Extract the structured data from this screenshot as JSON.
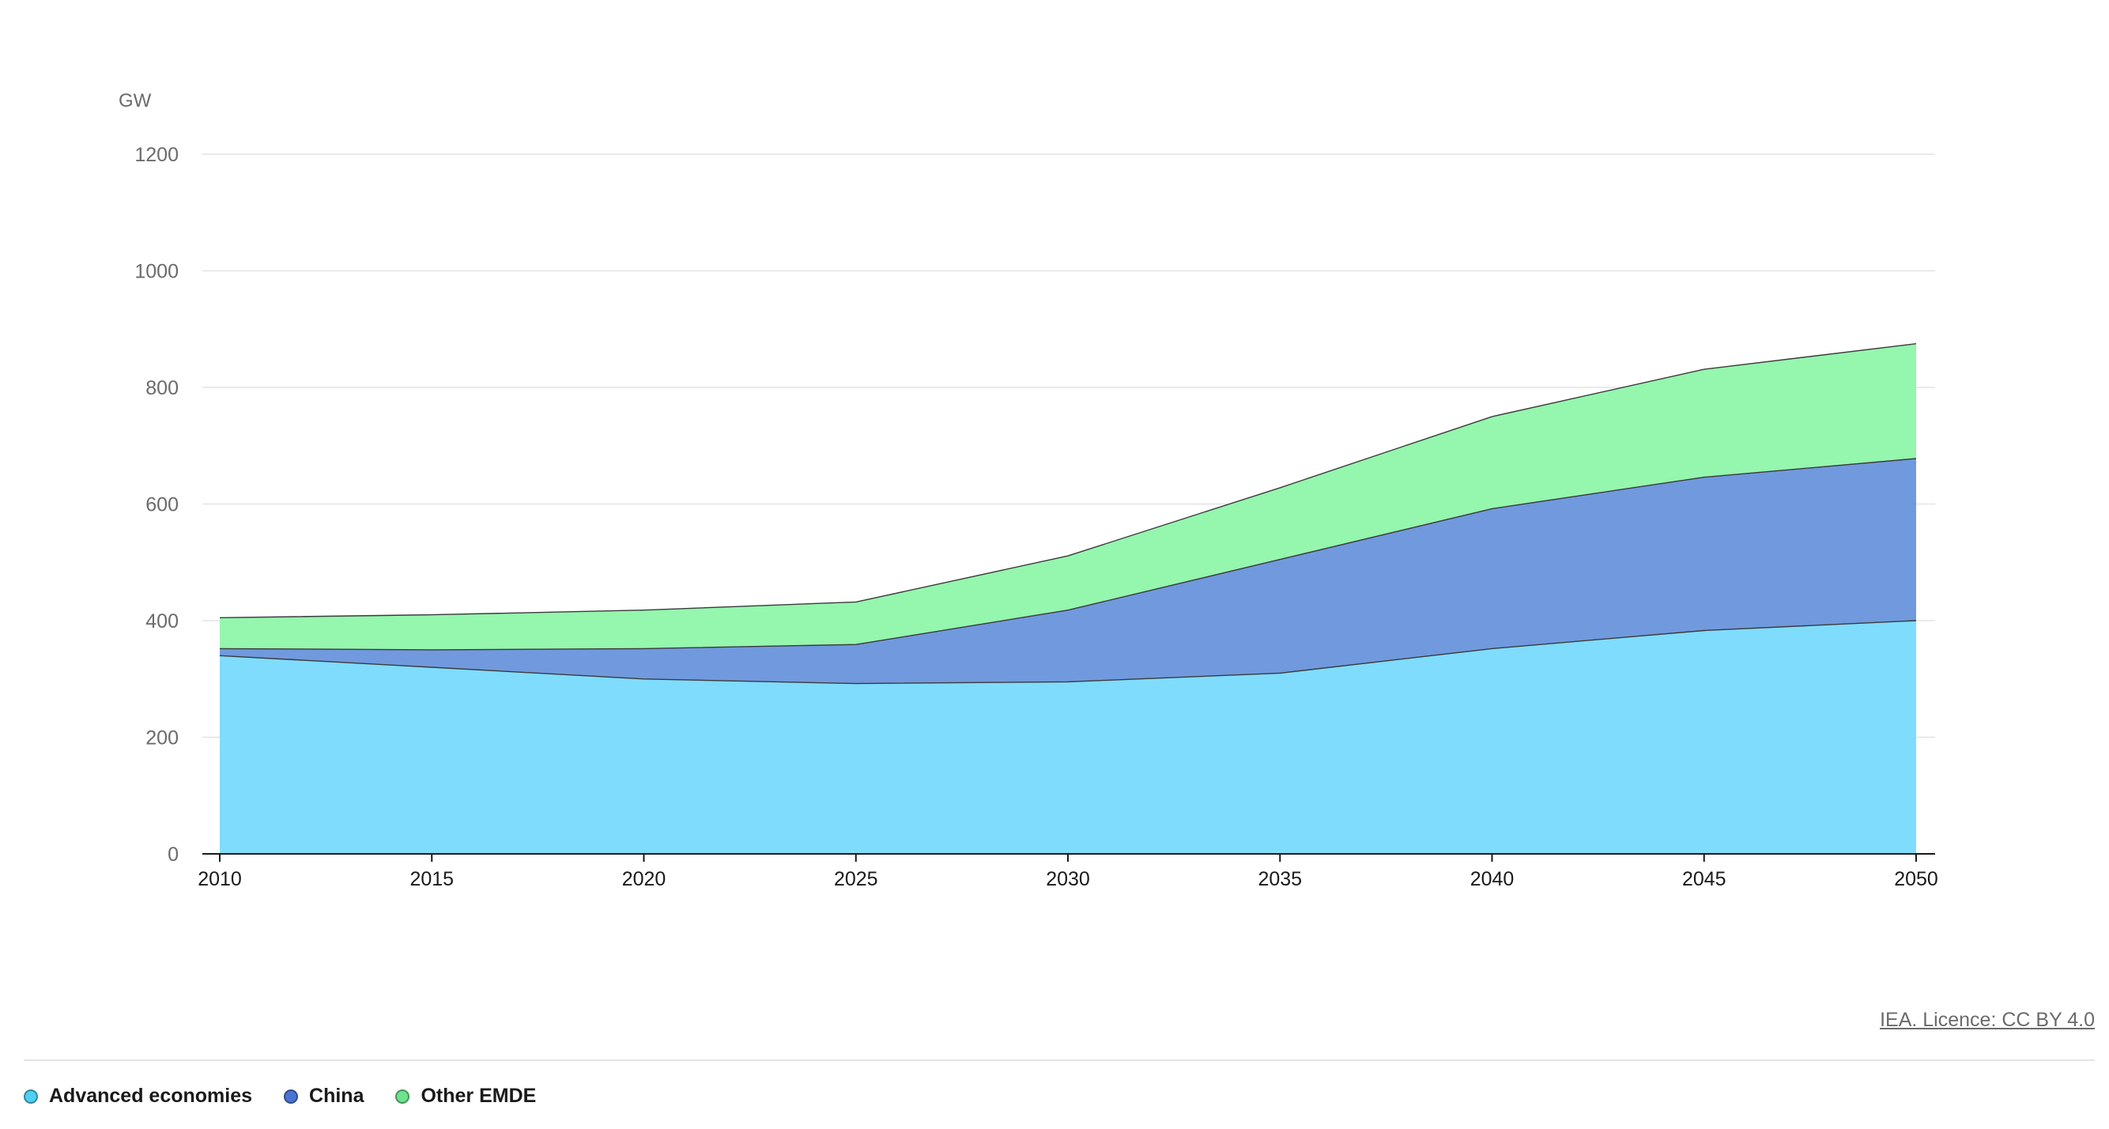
{
  "chart_data": {
    "type": "area",
    "stacked": true,
    "unit_label": "GW",
    "x": [
      2010,
      2015,
      2020,
      2025,
      2030,
      2035,
      2040,
      2045,
      2050
    ],
    "x_tick_labels": [
      "2010",
      "2015",
      "2020",
      "2025",
      "2030",
      "2035",
      "2040",
      "2045",
      "2050"
    ],
    "y_ticks": [
      0,
      200,
      400,
      600,
      800,
      1000,
      1200
    ],
    "y_tick_labels": [
      "0",
      "200",
      "400",
      "600",
      "800",
      "1000",
      "1200"
    ],
    "ylim": [
      0,
      1200
    ],
    "grid": true,
    "legend_position": "bottom-left",
    "series": [
      {
        "name": "Advanced economies",
        "color": "#7fdcfc",
        "legend_color": "#4fd0f4",
        "values": [
          340,
          320,
          300,
          292,
          295,
          310,
          352,
          383,
          400
        ]
      },
      {
        "name": "China",
        "color": "#7199de",
        "legend_color": "#4a74d4",
        "values": [
          12,
          30,
          52,
          67,
          123,
          195,
          240,
          263,
          278
        ]
      },
      {
        "name": "Other EMDE",
        "color": "#95f6ae",
        "legend_color": "#6ce38c",
        "values": [
          53,
          60,
          66,
          73,
          93,
          123,
          158,
          185,
          197
        ]
      }
    ]
  },
  "credit": "IEA. Licence: CC BY 4.0"
}
